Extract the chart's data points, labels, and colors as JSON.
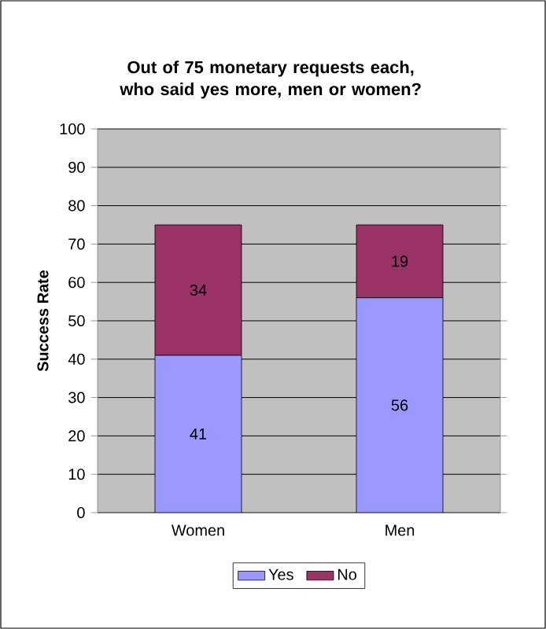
{
  "chart_data": {
    "type": "bar",
    "title": "Out of 75 monetary requests each, who said yes more, men or women?",
    "ylabel": "Success Rate",
    "categories": [
      "Women",
      "Men"
    ],
    "series": [
      {
        "name": "Yes",
        "color": "#9999ff",
        "values": [
          41,
          56
        ]
      },
      {
        "name": "No",
        "color": "#993366",
        "values": [
          34,
          19
        ]
      }
    ],
    "stacked": true,
    "data_labels": true,
    "ylim": [
      0,
      100
    ],
    "yticks": [
      0,
      10,
      20,
      30,
      40,
      50,
      60,
      70,
      80,
      90,
      100
    ],
    "grid": "y",
    "legend": "bottom"
  }
}
